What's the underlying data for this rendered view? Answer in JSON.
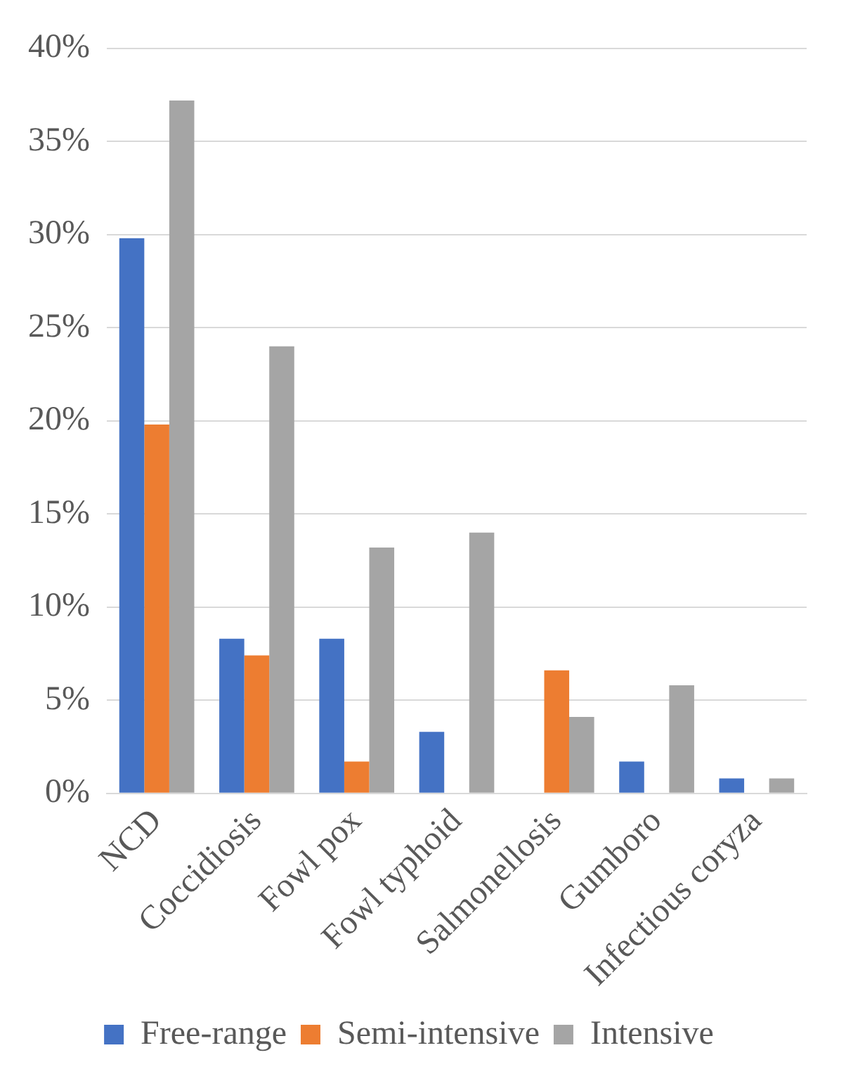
{
  "chart_data": {
    "type": "bar",
    "categories": [
      "NCD",
      "Coccidiosis",
      "Fowl pox",
      "Fowl typhoid",
      "Salmonellosis",
      "Gumboro",
      "Infectious coryza"
    ],
    "series": [
      {
        "name": "Free-range",
        "color": "#4472c4",
        "values": [
          29.8,
          8.3,
          8.3,
          3.3,
          0,
          1.7,
          0.8
        ]
      },
      {
        "name": "Semi-intensive",
        "color": "#ed7d31",
        "values": [
          19.8,
          7.4,
          1.7,
          0,
          6.6,
          0,
          0
        ]
      },
      {
        "name": "Intensive",
        "color": "#a5a5a5",
        "values": [
          37.2,
          24.0,
          13.2,
          14.0,
          4.1,
          5.8,
          0.8
        ]
      }
    ],
    "ylim": [
      0,
      40
    ],
    "yticks": [
      {
        "value": 0,
        "label": "0%"
      },
      {
        "value": 5,
        "label": "5%"
      },
      {
        "value": 10,
        "label": "10%"
      },
      {
        "value": 15,
        "label": "15%"
      },
      {
        "value": 20,
        "label": "20%"
      },
      {
        "value": 25,
        "label": "25%"
      },
      {
        "value": 30,
        "label": "30%"
      },
      {
        "value": 35,
        "label": "35%"
      },
      {
        "value": 40,
        "label": "40%"
      }
    ],
    "grid": "y",
    "legend": "bottom"
  }
}
